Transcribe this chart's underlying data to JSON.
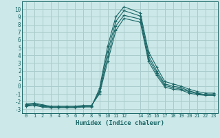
{
  "xlabel": "Humidex (Indice chaleur)",
  "background_color": "#cce8e8",
  "grid_color": "#aacccc",
  "line_color": "#1a6666",
  "xlim": [
    -0.5,
    23.5
  ],
  "ylim": [
    -3.5,
    11.0
  ],
  "xticks": [
    0,
    1,
    2,
    3,
    4,
    5,
    6,
    7,
    8,
    9,
    10,
    11,
    12,
    14,
    15,
    16,
    17,
    18,
    19,
    20,
    21,
    22,
    23
  ],
  "yticks": [
    -3,
    -2,
    -1,
    0,
    1,
    2,
    3,
    4,
    5,
    6,
    7,
    8,
    9,
    10
  ],
  "lines": [
    {
      "x": [
        0,
        1,
        2,
        3,
        4,
        5,
        6,
        7,
        8,
        9,
        10,
        11,
        12,
        14,
        15,
        16,
        17,
        18,
        19,
        20,
        21,
        22,
        23
      ],
      "y": [
        -2.6,
        -2.5,
        -2.7,
        -2.8,
        -2.8,
        -2.8,
        -2.8,
        -2.7,
        -2.7,
        -0.3,
        5.2,
        9.0,
        10.3,
        9.5,
        4.5,
        2.5,
        0.6,
        0.3,
        0.0,
        -0.4,
        -0.7,
        -0.9,
        -0.9
      ]
    },
    {
      "x": [
        0,
        1,
        2,
        3,
        4,
        5,
        6,
        7,
        8,
        9,
        10,
        11,
        12,
        14,
        15,
        16,
        17,
        18,
        19,
        20,
        21,
        22,
        23
      ],
      "y": [
        -2.5,
        -2.4,
        -2.6,
        -2.7,
        -2.7,
        -2.7,
        -2.7,
        -2.6,
        -2.6,
        -0.6,
        4.5,
        8.4,
        9.8,
        9.1,
        4.0,
        2.0,
        0.3,
        0.0,
        -0.2,
        -0.6,
        -0.9,
        -1.1,
        -1.1
      ]
    },
    {
      "x": [
        0,
        1,
        2,
        3,
        4,
        5,
        6,
        7,
        8,
        9,
        10,
        11,
        12,
        14,
        15,
        16,
        17,
        18,
        19,
        20,
        21,
        22,
        23
      ],
      "y": [
        -2.4,
        -2.3,
        -2.5,
        -2.7,
        -2.7,
        -2.7,
        -2.7,
        -2.6,
        -2.6,
        -0.8,
        3.8,
        7.8,
        9.2,
        8.7,
        3.6,
        1.7,
        0.1,
        -0.2,
        -0.4,
        -0.7,
        -1.0,
        -1.1,
        -1.1
      ]
    },
    {
      "x": [
        0,
        1,
        2,
        3,
        4,
        5,
        6,
        7,
        8,
        9,
        10,
        11,
        12,
        14,
        15,
        16,
        17,
        18,
        19,
        20,
        21,
        22,
        23
      ],
      "y": [
        -2.3,
        -2.2,
        -2.4,
        -2.6,
        -2.6,
        -2.6,
        -2.6,
        -2.5,
        -2.5,
        -1.0,
        3.2,
        7.2,
        8.8,
        8.3,
        3.2,
        1.4,
        -0.1,
        -0.4,
        -0.5,
        -0.9,
        -1.1,
        -1.2,
        -1.2
      ]
    }
  ]
}
